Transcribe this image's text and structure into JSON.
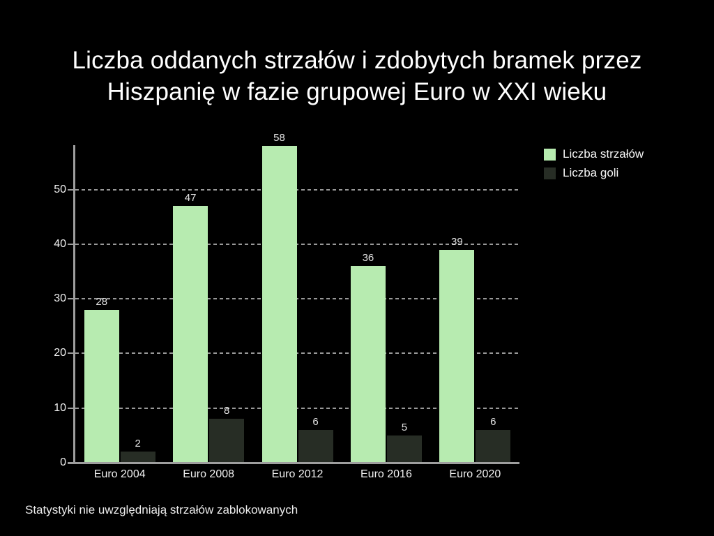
{
  "title": {
    "line1": "Liczba oddanych strzałów i zdobytych bramek przez",
    "line2": "Hiszpanię w fazie grupowej Euro w XXI wieku"
  },
  "footer": "Statystyki nie uwzględniają strzałów zablokowanych",
  "legend": {
    "position": "top-right",
    "items": [
      {
        "label": "Liczba strzałów",
        "color": "#b7ebb0"
      },
      {
        "label": "Liczba goli",
        "color": "#272d25"
      }
    ]
  },
  "colors": {
    "background": "#000000",
    "shots_bar": "#b7ebb0",
    "goals_bar": "#272d25",
    "axis_line": "#9e9e9e",
    "gridline": "#999999",
    "title_text": "#ffffff",
    "label_text": "#f1f1f1",
    "value_label_text": "#e2e2e2"
  },
  "chart_data": {
    "type": "bar",
    "title": "Liczba oddanych strzałów i zdobytych bramek przez Hiszpanię w fazie grupowej Euro w XXI wieku",
    "categories": [
      "Euro 2004",
      "Euro 2008",
      "Euro 2012",
      "Euro 2016",
      "Euro 2020"
    ],
    "series": [
      {
        "name": "Liczba strzałów",
        "color": "#b7ebb0",
        "values": [
          28,
          47,
          58,
          36,
          39
        ]
      },
      {
        "name": "Liczba goli",
        "color": "#272d25",
        "values": [
          2,
          8,
          6,
          5,
          6
        ]
      }
    ],
    "bar_value_labels": true,
    "xlabel": "",
    "ylabel": "",
    "yticks": [
      0,
      10,
      20,
      30,
      40,
      50
    ],
    "ylim": [
      0,
      58.14
    ],
    "grid": "horizontal-dashed",
    "legend_position": "top-right",
    "annotation": "Statystyki nie uwzględniają strzałów zablokowanych"
  }
}
